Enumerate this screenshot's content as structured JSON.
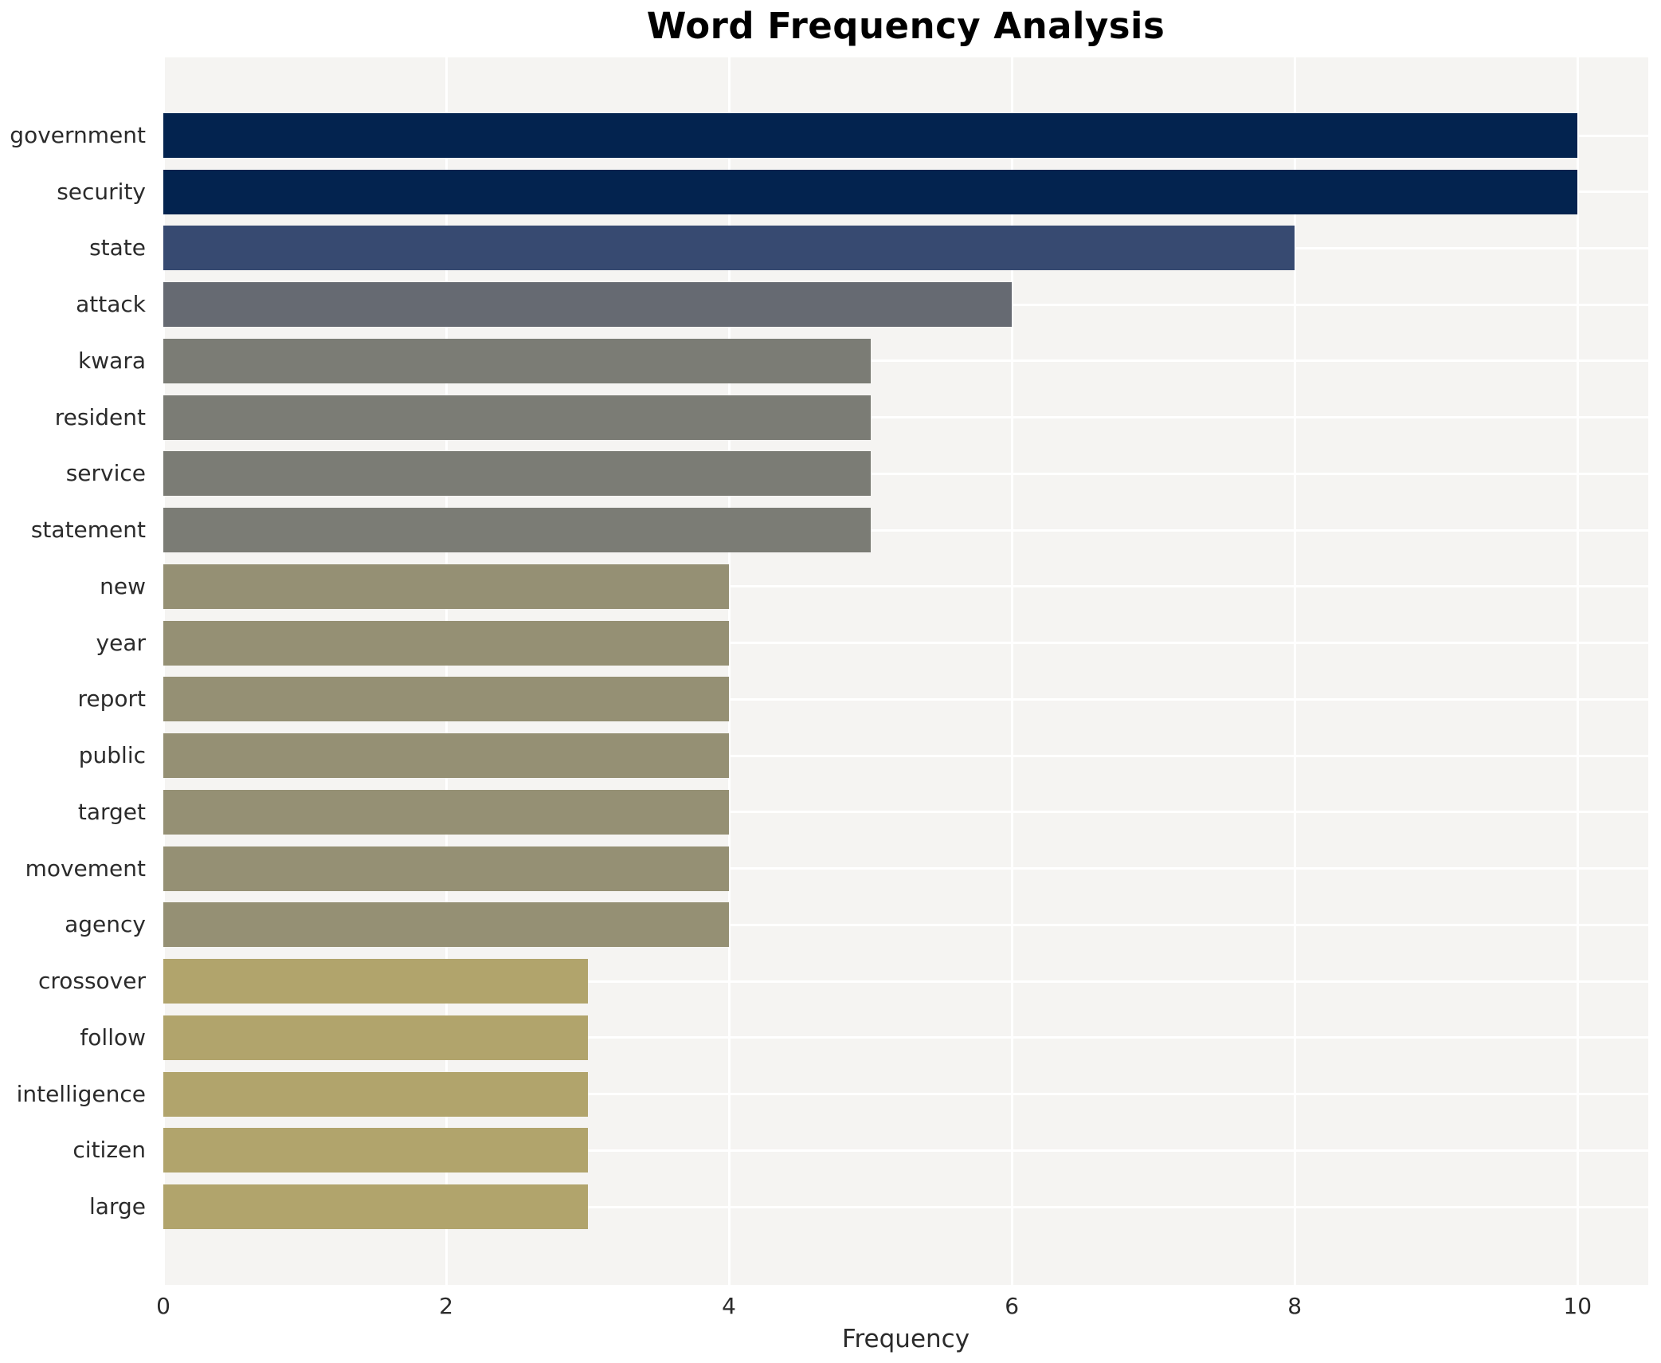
{
  "title": "Word Frequency Analysis",
  "colors": {
    "figure_bg": "#ffffff",
    "plot_bg": "#f5f4f2",
    "grid": "#ffffff",
    "title_color": "#000000",
    "label_color": "#2b2b2b",
    "value_10": "#03234f",
    "value_8": "#374a71",
    "value_6": "#666a72",
    "value_5": "#7b7c75",
    "value_4": "#959074",
    "value_3": "#b1a46c"
  },
  "chart_data": {
    "type": "bar",
    "orientation": "horizontal",
    "title": "Word Frequency Analysis",
    "xlabel": "Frequency",
    "ylabel": "",
    "categories": [
      "government",
      "security",
      "state",
      "attack",
      "kwara",
      "resident",
      "service",
      "statement",
      "new",
      "year",
      "report",
      "public",
      "target",
      "movement",
      "agency",
      "crossover",
      "follow",
      "intelligence",
      "citizen",
      "large"
    ],
    "values": [
      10,
      10,
      8,
      6,
      5,
      5,
      5,
      5,
      4,
      4,
      4,
      4,
      4,
      4,
      4,
      3,
      3,
      3,
      3,
      3
    ],
    "bar_colors": [
      "#03234f",
      "#03234f",
      "#374a71",
      "#666a72",
      "#7b7c75",
      "#7b7c75",
      "#7b7c75",
      "#7b7c75",
      "#959074",
      "#959074",
      "#959074",
      "#959074",
      "#959074",
      "#959074",
      "#959074",
      "#b1a46c",
      "#b1a46c",
      "#b1a46c",
      "#b1a46c",
      "#b1a46c"
    ],
    "xticks": [
      0,
      2,
      4,
      6,
      8,
      10
    ],
    "xlim": [
      0,
      10.5
    ],
    "grid": true,
    "legend_position": "none"
  }
}
